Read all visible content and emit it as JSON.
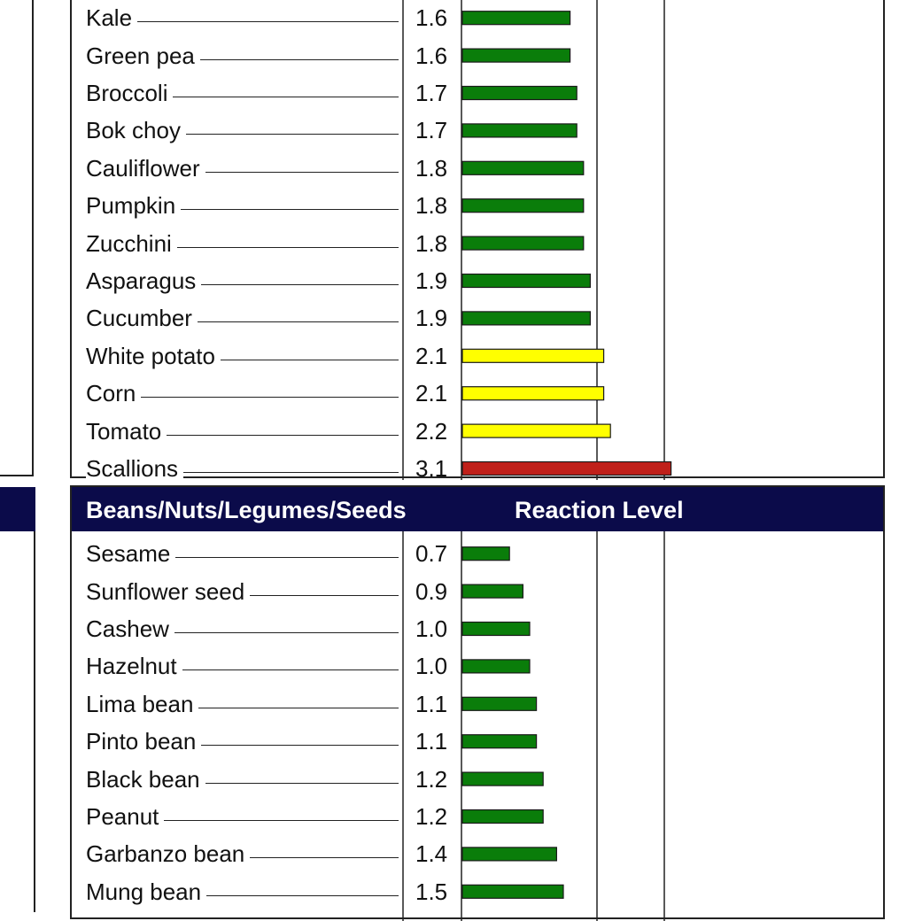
{
  "chart_data": [
    {
      "type": "bar",
      "orientation": "horizontal",
      "title": "",
      "ylabel": "",
      "xlabel": "",
      "xlim": [
        0,
        5
      ],
      "categories": [
        "Kale",
        "Green pea",
        "Broccoli",
        "Bok choy",
        "Cauliflower",
        "Pumpkin",
        "Zucchini",
        "Asparagus",
        "Cucumber",
        "White potato",
        "Corn",
        "Tomato",
        "Scallions"
      ],
      "values": [
        1.6,
        1.6,
        1.7,
        1.7,
        1.8,
        1.8,
        1.8,
        1.9,
        1.9,
        2.1,
        2.1,
        2.2,
        3.1
      ],
      "value_labels": [
        "1.6",
        "1.6",
        "1.7",
        "1.7",
        "1.8",
        "1.8",
        "1.8",
        "1.9",
        "1.9",
        "2.1",
        "2.1",
        "2.2",
        "3.1"
      ],
      "colors": [
        "#0a7d0a",
        "#0a7d0a",
        "#0a7d0a",
        "#0a7d0a",
        "#0a7d0a",
        "#0a7d0a",
        "#0a7d0a",
        "#0a7d0a",
        "#0a7d0a",
        "#ffff00",
        "#ffff00",
        "#ffff00",
        "#c0201a"
      ],
      "gridlines_at": [
        2,
        3
      ]
    },
    {
      "type": "bar",
      "orientation": "horizontal",
      "title": "",
      "header": {
        "category_label": "Beans/Nuts/Legumes/Seeds",
        "level_label": "Reaction Level"
      },
      "xlim": [
        0,
        5
      ],
      "categories": [
        "Sesame",
        "Sunflower seed",
        "Cashew",
        "Hazelnut",
        "Lima bean",
        "Pinto bean",
        "Black bean",
        "Peanut",
        "Garbanzo bean",
        "Mung bean"
      ],
      "values": [
        0.7,
        0.9,
        1.0,
        1.0,
        1.1,
        1.1,
        1.2,
        1.2,
        1.4,
        1.5
      ],
      "value_labels": [
        "0.7",
        "0.9",
        "1.0",
        "1.0",
        "1.1",
        "1.1",
        "1.2",
        "1.2",
        "1.4",
        "1.5"
      ],
      "colors": [
        "#0a7d0a",
        "#0a7d0a",
        "#0a7d0a",
        "#0a7d0a",
        "#0a7d0a",
        "#0a7d0a",
        "#0a7d0a",
        "#0a7d0a",
        "#0a7d0a",
        "#0a7d0a"
      ],
      "gridlines_at": [
        2,
        3
      ]
    }
  ],
  "colors": {
    "header_bg": "#0b0b4a",
    "header_text": "#ffffff",
    "low": "#0a7d0a",
    "moderate": "#ffff00",
    "high": "#c0201a",
    "border": "#222222"
  }
}
